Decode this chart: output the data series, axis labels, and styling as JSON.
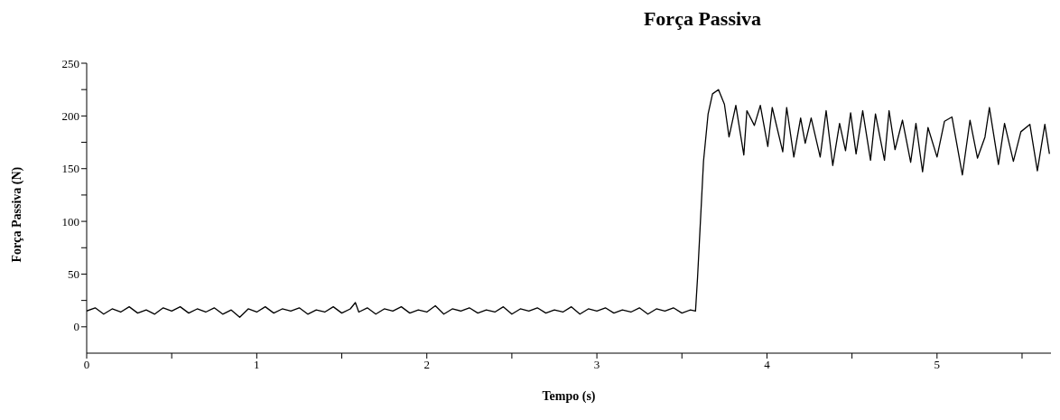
{
  "chart_data": {
    "type": "line",
    "title": "Força Passiva",
    "xlabel": "Tempo (s)",
    "ylabel": "Força Passiva (N)",
    "x": [
      0,
      0.05,
      0.1,
      0.15,
      0.2,
      0.25,
      0.3,
      0.35,
      0.4,
      0.45,
      0.5,
      0.55,
      0.6,
      0.65,
      0.7,
      0.75,
      0.8,
      0.85,
      0.9,
      0.95,
      1,
      1.05,
      1.1,
      1.15,
      1.2,
      1.25,
      1.3,
      1.35,
      1.4,
      1.45,
      1.5,
      1.55,
      1.58,
      1.6,
      1.65,
      1.7,
      1.75,
      1.8,
      1.85,
      1.9,
      1.95,
      2,
      2.05,
      2.1,
      2.15,
      2.2,
      2.25,
      2.3,
      2.35,
      2.4,
      2.45,
      2.5,
      2.55,
      2.6,
      2.65,
      2.7,
      2.75,
      2.8,
      2.85,
      2.9,
      2.95,
      3,
      3.05,
      3.1,
      3.15,
      3.2,
      3.25,
      3.3,
      3.35,
      3.4,
      3.45,
      3.5,
      3.55,
      3.58,
      3.592,
      3.627,
      3.654,
      3.68,
      3.715,
      3.75,
      3.777,
      3.817,
      3.864,
      3.882,
      3.926,
      3.961,
      4.005,
      4.031,
      4.093,
      4.116,
      4.158,
      4.198,
      4.225,
      4.26,
      4.313,
      4.348,
      4.387,
      4.427,
      4.462,
      4.492,
      4.524,
      4.563,
      4.609,
      4.638,
      4.691,
      4.718,
      4.753,
      4.797,
      4.845,
      4.876,
      4.915,
      4.947,
      5,
      5.044,
      5.088,
      5.149,
      5.194,
      5.238,
      5.282,
      5.308,
      5.361,
      5.397,
      5.449,
      5.493,
      5.546,
      5.59,
      5.634,
      5.661
    ],
    "series": [
      {
        "color": "#000000",
        "values": [
          15,
          18,
          12,
          17,
          14,
          19,
          13,
          16,
          12,
          18,
          15,
          19,
          13,
          17,
          14,
          18,
          12,
          16,
          9,
          17,
          14,
          19,
          13,
          17,
          15,
          18,
          12,
          16,
          14,
          19,
          13,
          17,
          23,
          14,
          18,
          12,
          17,
          15,
          19,
          13,
          16,
          14,
          20,
          12,
          17,
          15,
          18,
          13,
          16,
          14,
          19,
          12,
          17,
          15,
          18,
          13,
          16,
          14,
          19,
          12,
          17,
          15,
          18,
          13,
          16,
          14,
          18,
          12,
          17,
          15,
          18,
          13,
          16,
          15,
          47,
          157,
          202,
          221,
          225,
          211,
          180,
          210,
          163,
          205,
          191,
          210,
          171,
          208,
          166,
          208,
          161,
          198,
          174,
          198,
          161,
          205,
          153,
          193,
          167,
          203,
          164,
          205,
          158,
          202,
          158,
          205,
          168,
          196,
          156,
          193,
          147,
          189,
          161,
          195,
          199,
          144,
          196,
          160,
          180,
          208,
          154,
          193,
          157,
          185,
          192,
          148,
          192,
          164
        ]
      }
    ],
    "xlim": [
      0,
      5.67
    ],
    "xticks": [
      0,
      {
        "value": 0.5,
        "label": null
      },
      1,
      {
        "value": 1.5,
        "label": null
      },
      2,
      {
        "value": 2.5,
        "label": null
      },
      3,
      {
        "value": 3.5,
        "label": null
      },
      4,
      {
        "value": 4.5,
        "label": null
      },
      5,
      {
        "value": 5.5,
        "label": null
      }
    ],
    "ylim": [
      -25,
      250
    ],
    "yticks": [
      0,
      {
        "value": 25,
        "label": null
      },
      50,
      {
        "value": 75,
        "label": null
      },
      100,
      {
        "value": 125,
        "label": null
      },
      150,
      {
        "value": 175,
        "label": null
      },
      200,
      {
        "value": 225,
        "label": null
      },
      250
    ],
    "grid": false,
    "legend": false,
    "marker": "none",
    "line_style": "solid"
  }
}
